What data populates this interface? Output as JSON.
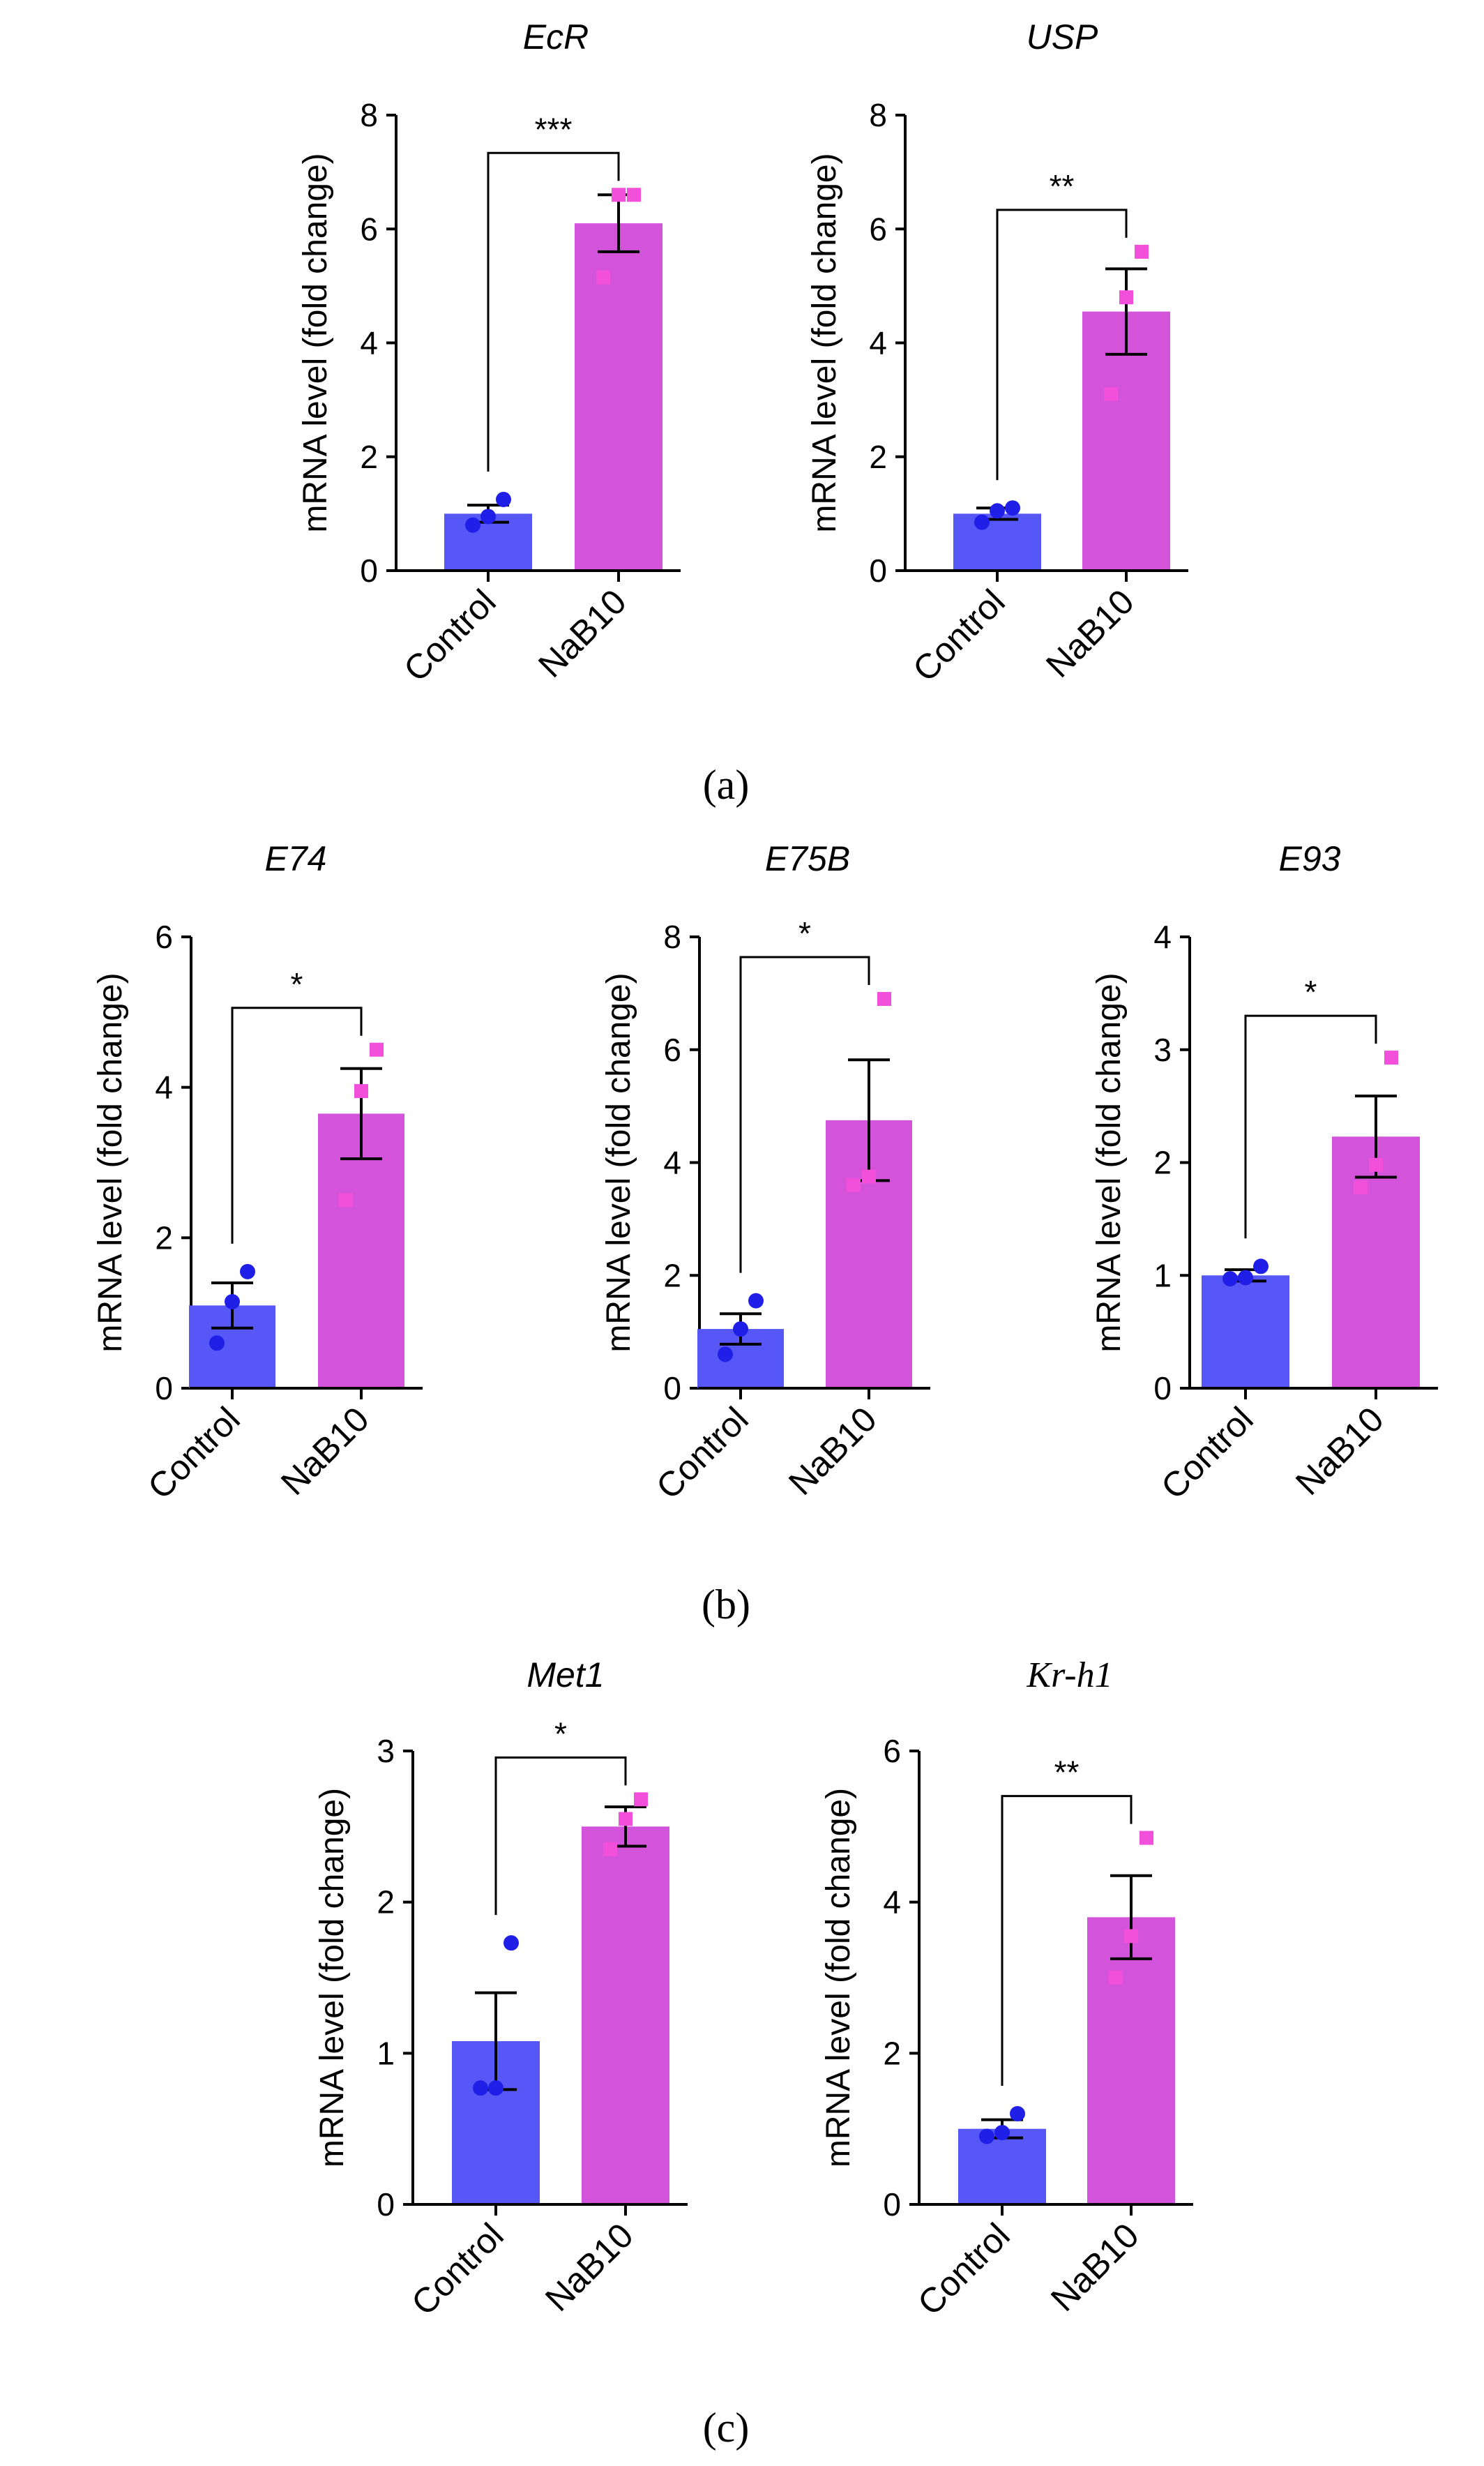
{
  "chart_data": [
    {
      "type": "bar",
      "title": "EcR",
      "ylabel": "mRNA level (fold change)",
      "categories": [
        "Control",
        "NaB10"
      ],
      "values": [
        1.0,
        6.1
      ],
      "errors": [
        0.15,
        0.5
      ],
      "points": [
        [
          0.8,
          0.95,
          1.25
        ],
        [
          5.15,
          6.6,
          6.6
        ]
      ],
      "ylim": [
        0,
        8
      ],
      "yticks": [
        "0",
        "2",
        "4",
        "6",
        "8"
      ],
      "significance": "***",
      "colors": [
        "#5757F7",
        "#D453DB"
      ],
      "point_colors": [
        "#1F1FE8",
        "#F250DA"
      ]
    },
    {
      "type": "bar",
      "title": "USP",
      "ylabel": "mRNA level (fold change)",
      "categories": [
        "Control",
        "NaB10"
      ],
      "values": [
        1.0,
        4.55
      ],
      "errors": [
        0.1,
        0.75
      ],
      "points": [
        [
          0.85,
          1.05,
          1.1
        ],
        [
          3.1,
          4.8,
          5.6
        ]
      ],
      "ylim": [
        0,
        8
      ],
      "yticks": [
        "0",
        "2",
        "4",
        "6",
        "8"
      ],
      "significance": "**",
      "colors": [
        "#5757F7",
        "#D453DB"
      ],
      "point_colors": [
        "#1F1FE8",
        "#F250DA"
      ]
    },
    {
      "type": "bar",
      "title": "E74",
      "ylabel": "mRNA level (fold change)",
      "categories": [
        "Control",
        "NaB10"
      ],
      "values": [
        1.1,
        3.65
      ],
      "errors": [
        0.3,
        0.6
      ],
      "points": [
        [
          0.6,
          1.15,
          1.55
        ],
        [
          2.5,
          3.95,
          4.5
        ]
      ],
      "ylim": [
        0,
        6
      ],
      "yticks": [
        "0",
        "2",
        "4",
        "6"
      ],
      "significance": "*",
      "colors": [
        "#5757F7",
        "#D453DB"
      ],
      "point_colors": [
        "#1F1FE8",
        "#F250DA"
      ]
    },
    {
      "type": "bar",
      "title": "E75B",
      "ylabel": "mRNA level (fold change)",
      "categories": [
        "Control",
        "NaB10"
      ],
      "values": [
        1.05,
        4.75
      ],
      "errors": [
        0.27,
        1.07
      ],
      "points": [
        [
          0.6,
          1.05,
          1.55
        ],
        [
          3.6,
          3.75,
          6.9
        ]
      ],
      "ylim": [
        0,
        8
      ],
      "yticks": [
        "0",
        "2",
        "4",
        "6",
        "8"
      ],
      "significance": "*",
      "colors": [
        "#5757F7",
        "#D453DB"
      ],
      "point_colors": [
        "#1F1FE8",
        "#F250DA"
      ]
    },
    {
      "type": "bar",
      "title": "E93",
      "ylabel": "mRNA level (fold change)",
      "categories": [
        "Control",
        "NaB10"
      ],
      "values": [
        1.0,
        2.23
      ],
      "errors": [
        0.05,
        0.36
      ],
      "points": [
        [
          0.97,
          0.98,
          1.08
        ],
        [
          1.78,
          1.98,
          2.93
        ]
      ],
      "ylim": [
        0,
        4
      ],
      "yticks": [
        "0",
        "1",
        "2",
        "3",
        "4"
      ],
      "significance": "*",
      "colors": [
        "#5757F7",
        "#D453DB"
      ],
      "point_colors": [
        "#1F1FE8",
        "#F250DA"
      ]
    },
    {
      "type": "bar",
      "title": "Met1",
      "ylabel": "mRNA level (fold change)",
      "categories": [
        "Control",
        "NaB10"
      ],
      "values": [
        1.08,
        2.5
      ],
      "errors": [
        0.32,
        0.13
      ],
      "points": [
        [
          0.77,
          0.77,
          1.73
        ],
        [
          2.35,
          2.55,
          2.68
        ]
      ],
      "ylim": [
        0,
        3
      ],
      "yticks": [
        "0",
        "1",
        "2",
        "3"
      ],
      "significance": "*",
      "colors": [
        "#5757F7",
        "#D453DB"
      ],
      "point_colors": [
        "#1F1FE8",
        "#F250DA"
      ]
    },
    {
      "type": "bar",
      "title": "Kr-h1",
      "ylabel": "mRNA level (fold change)",
      "categories": [
        "Control",
        "NaB10"
      ],
      "values": [
        1.0,
        3.8
      ],
      "errors": [
        0.12,
        0.55
      ],
      "points": [
        [
          0.9,
          0.95,
          1.2
        ],
        [
          3.0,
          3.55,
          4.85
        ]
      ],
      "ylim": [
        0,
        6
      ],
      "yticks": [
        "0",
        "2",
        "4",
        "6"
      ],
      "significance": "**",
      "colors": [
        "#5757F7",
        "#D453DB"
      ],
      "point_colors": [
        "#1F1FE8",
        "#F250DA"
      ]
    }
  ],
  "panel_labels": {
    "a": "(a)",
    "b": "(b)",
    "c": "(c)"
  }
}
